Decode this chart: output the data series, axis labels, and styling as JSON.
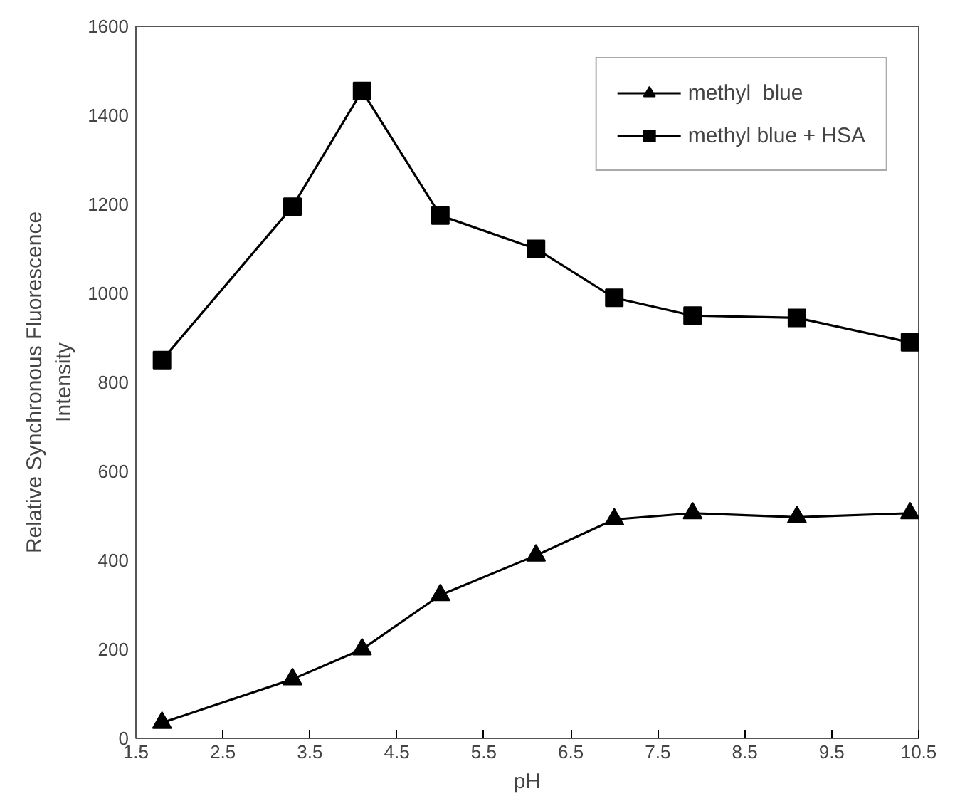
{
  "chart_data": {
    "type": "line",
    "xlabel": "pH",
    "ylabel": "Relative Synchronous Fluorescence Intensity",
    "xlim": [
      1.5,
      10.5
    ],
    "xticks": [
      1.5,
      2.5,
      3.5,
      4.5,
      5.5,
      6.5,
      7.5,
      8.5,
      9.5,
      10.5
    ],
    "ylim": [
      0,
      1600
    ],
    "yticks": [
      0,
      200,
      400,
      600,
      800,
      1000,
      1200,
      1400,
      1600
    ],
    "x": [
      1.8,
      3.3,
      4.1,
      5.0,
      6.1,
      7.0,
      7.9,
      9.1,
      10.4
    ],
    "series": [
      {
        "name": "methyl  blue",
        "color": "#000000",
        "marker": "triangle",
        "values": [
          35,
          133,
          200,
          322,
          411,
          492,
          506,
          497,
          506
        ]
      },
      {
        "name": "methyl blue + HSA",
        "color": "#000000",
        "marker": "square",
        "values": [
          850,
          1195,
          1455,
          1175,
          1100,
          990,
          950,
          945,
          890
        ]
      }
    ],
    "grid": false,
    "legend": "top right",
    "line_style": "solid"
  }
}
